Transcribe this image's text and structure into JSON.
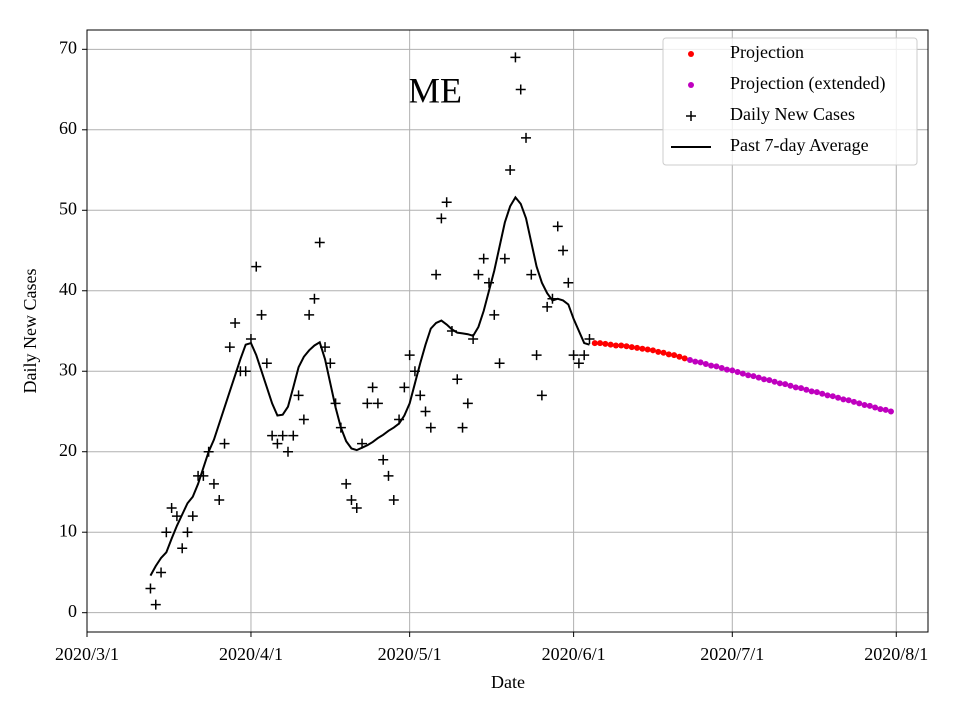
{
  "chart_data": {
    "type": "line",
    "title": "ME",
    "xlabel": "Date",
    "ylabel": "Daily New Cases",
    "xlim": [
      "2020-03-01",
      "2020-08-07"
    ],
    "ylim": [
      -2.4,
      72.4
    ],
    "xticks": [
      {
        "value": "2020-03-01",
        "label": "2020/3/1"
      },
      {
        "value": "2020-04-01",
        "label": "2020/4/1"
      },
      {
        "value": "2020-05-01",
        "label": "2020/5/1"
      },
      {
        "value": "2020-06-01",
        "label": "2020/6/1"
      },
      {
        "value": "2020-07-01",
        "label": "2020/7/1"
      },
      {
        "value": "2020-08-01",
        "label": "2020/8/1"
      }
    ],
    "yticks": [
      0,
      10,
      20,
      30,
      40,
      50,
      60,
      70
    ],
    "grid": true,
    "legend": "upper right",
    "series": [
      {
        "name": "Projection",
        "color": "#ff0000",
        "marker": "dot",
        "x": [
          "2020-06-05",
          "2020-06-06",
          "2020-06-07",
          "2020-06-08",
          "2020-06-09",
          "2020-06-10",
          "2020-06-11",
          "2020-06-12",
          "2020-06-13",
          "2020-06-14",
          "2020-06-15",
          "2020-06-16",
          "2020-06-17",
          "2020-06-18",
          "2020-06-19",
          "2020-06-20",
          "2020-06-21",
          "2020-06-22"
        ],
        "values": [
          33.5,
          33.5,
          33.4,
          33.3,
          33.2,
          33.2,
          33.1,
          33,
          32.9,
          32.8,
          32.7,
          32.6,
          32.4,
          32.3,
          32.1,
          32,
          31.8,
          31.6
        ]
      },
      {
        "name": "Projection (extended)",
        "color": "#bf00bf",
        "marker": "dot",
        "x": [
          "2020-06-23",
          "2020-06-24",
          "2020-06-25",
          "2020-06-26",
          "2020-06-27",
          "2020-06-28",
          "2020-06-29",
          "2020-06-30",
          "2020-07-01",
          "2020-07-02",
          "2020-07-03",
          "2020-07-04",
          "2020-07-05",
          "2020-07-06",
          "2020-07-07",
          "2020-07-08",
          "2020-07-09",
          "2020-07-10",
          "2020-07-11",
          "2020-07-12",
          "2020-07-13",
          "2020-07-14",
          "2020-07-15",
          "2020-07-16",
          "2020-07-17",
          "2020-07-18",
          "2020-07-19",
          "2020-07-20",
          "2020-07-21",
          "2020-07-22",
          "2020-07-23",
          "2020-07-24",
          "2020-07-25",
          "2020-07-26",
          "2020-07-27",
          "2020-07-28",
          "2020-07-29",
          "2020-07-30",
          "2020-07-31"
        ],
        "values": [
          31.4,
          31.2,
          31.1,
          30.9,
          30.7,
          30.6,
          30.4,
          30.2,
          30.1,
          29.9,
          29.7,
          29.5,
          29.4,
          29.2,
          29.0,
          28.9,
          28.7,
          28.5,
          28.4,
          28.2,
          28.0,
          27.9,
          27.7,
          27.5,
          27.4,
          27.2,
          27.0,
          26.9,
          26.7,
          26.5,
          26.4,
          26.2,
          26.0,
          25.8,
          25.7,
          25.5,
          25.3,
          25.2,
          25.0
        ]
      },
      {
        "name": "Daily New Cases",
        "color": "#000000",
        "marker": "plus",
        "x": [
          "2020-03-13",
          "2020-03-14",
          "2020-03-15",
          "2020-03-16",
          "2020-03-17",
          "2020-03-18",
          "2020-03-19",
          "2020-03-20",
          "2020-03-21",
          "2020-03-22",
          "2020-03-23",
          "2020-03-24",
          "2020-03-25",
          "2020-03-26",
          "2020-03-27",
          "2020-03-28",
          "2020-03-29",
          "2020-03-30",
          "2020-03-31",
          "2020-04-01",
          "2020-04-02",
          "2020-04-03",
          "2020-04-04",
          "2020-04-05",
          "2020-04-06",
          "2020-04-07",
          "2020-04-08",
          "2020-04-09",
          "2020-04-10",
          "2020-04-11",
          "2020-04-12",
          "2020-04-13",
          "2020-04-14",
          "2020-04-15",
          "2020-04-16",
          "2020-04-17",
          "2020-04-18",
          "2020-04-19",
          "2020-04-20",
          "2020-04-21",
          "2020-04-22",
          "2020-04-23",
          "2020-04-24",
          "2020-04-25",
          "2020-04-26",
          "2020-04-27",
          "2020-04-28",
          "2020-04-29",
          "2020-04-30",
          "2020-05-01",
          "2020-05-02",
          "2020-05-03",
          "2020-05-04",
          "2020-05-05",
          "2020-05-06",
          "2020-05-07",
          "2020-05-08",
          "2020-05-09",
          "2020-05-10",
          "2020-05-11",
          "2020-05-12",
          "2020-05-13",
          "2020-05-14",
          "2020-05-15",
          "2020-05-16",
          "2020-05-17",
          "2020-05-18",
          "2020-05-19",
          "2020-05-20",
          "2020-05-21",
          "2020-05-22",
          "2020-05-23",
          "2020-05-24",
          "2020-05-25",
          "2020-05-26",
          "2020-05-27",
          "2020-05-28",
          "2020-05-29",
          "2020-05-30",
          "2020-05-31",
          "2020-06-01",
          "2020-06-02",
          "2020-06-03",
          "2020-06-04"
        ],
        "values": [
          3,
          1,
          5,
          10,
          13,
          12,
          8,
          10,
          12,
          17,
          17,
          20,
          16,
          14,
          21,
          33,
          36,
          30,
          30,
          34,
          43,
          37,
          31,
          22,
          21,
          22,
          20,
          22,
          27,
          24,
          37,
          39,
          46,
          33,
          31,
          26,
          23,
          16,
          14,
          13,
          21,
          26,
          28,
          26,
          19,
          17,
          14,
          24,
          28,
          32,
          30,
          27,
          25,
          23,
          42,
          49,
          51,
          35,
          29,
          23,
          26,
          34,
          42,
          44,
          41,
          37,
          31,
          44,
          55,
          69,
          65,
          59,
          42,
          32,
          27,
          38,
          39,
          48,
          45,
          41,
          32,
          31,
          32,
          34
        ]
      },
      {
        "name": "Past 7-day Average",
        "color": "#000000",
        "marker": "line",
        "x": [
          "2020-03-13",
          "2020-03-14",
          "2020-03-15",
          "2020-03-16",
          "2020-03-17",
          "2020-03-18",
          "2020-03-19",
          "2020-03-20",
          "2020-03-21",
          "2020-03-22",
          "2020-03-23",
          "2020-03-24",
          "2020-03-25",
          "2020-03-26",
          "2020-03-27",
          "2020-03-28",
          "2020-03-29",
          "2020-03-30",
          "2020-03-31",
          "2020-04-01",
          "2020-04-02",
          "2020-04-03",
          "2020-04-04",
          "2020-04-05",
          "2020-04-06",
          "2020-04-07",
          "2020-04-08",
          "2020-04-09",
          "2020-04-10",
          "2020-04-11",
          "2020-04-12",
          "2020-04-13",
          "2020-04-14",
          "2020-04-15",
          "2020-04-16",
          "2020-04-17",
          "2020-04-18",
          "2020-04-19",
          "2020-04-20",
          "2020-04-21",
          "2020-04-22",
          "2020-04-23",
          "2020-04-24",
          "2020-04-25",
          "2020-04-26",
          "2020-04-27",
          "2020-04-28",
          "2020-04-29",
          "2020-04-30",
          "2020-05-01",
          "2020-05-02",
          "2020-05-03",
          "2020-05-04",
          "2020-05-05",
          "2020-05-06",
          "2020-05-07",
          "2020-05-08",
          "2020-05-09",
          "2020-05-10",
          "2020-05-11",
          "2020-05-12",
          "2020-05-13",
          "2020-05-14",
          "2020-05-15",
          "2020-05-16",
          "2020-05-17",
          "2020-05-18",
          "2020-05-19",
          "2020-05-20",
          "2020-05-21",
          "2020-05-22",
          "2020-05-23",
          "2020-05-24",
          "2020-05-25",
          "2020-05-26",
          "2020-05-27",
          "2020-05-28",
          "2020-05-29",
          "2020-05-30",
          "2020-05-31",
          "2020-06-01",
          "2020-06-02",
          "2020-06-03",
          "2020-06-04"
        ],
        "values": [
          4.6,
          5.8,
          6.8,
          7.5,
          9.2,
          10.8,
          12.2,
          13.6,
          14.4,
          16,
          18,
          20,
          21.5,
          23.5,
          25.5,
          27.5,
          29.5,
          31.5,
          33.3,
          33.5,
          32,
          30,
          28,
          26,
          24.5,
          24.6,
          25.6,
          28,
          30.5,
          31.8,
          32.6,
          33.2,
          33.6,
          31.5,
          28.5,
          25.5,
          23,
          21.3,
          20.4,
          20.2,
          20.5,
          20.8,
          21.2,
          21.7,
          22.1,
          22.6,
          23,
          23.5,
          24.5,
          26,
          28.5,
          31,
          33.3,
          35.3,
          36,
          36.3,
          35.8,
          35.2,
          34.8,
          34.7,
          34.6,
          34.4,
          35.5,
          37.5,
          40,
          42.5,
          45.5,
          48.5,
          50.5,
          51.6,
          50.8,
          49,
          46,
          43,
          41,
          39.7,
          38.8,
          39,
          38.8,
          38.3,
          36.5,
          35,
          33.5,
          33.3
        ]
      }
    ]
  }
}
